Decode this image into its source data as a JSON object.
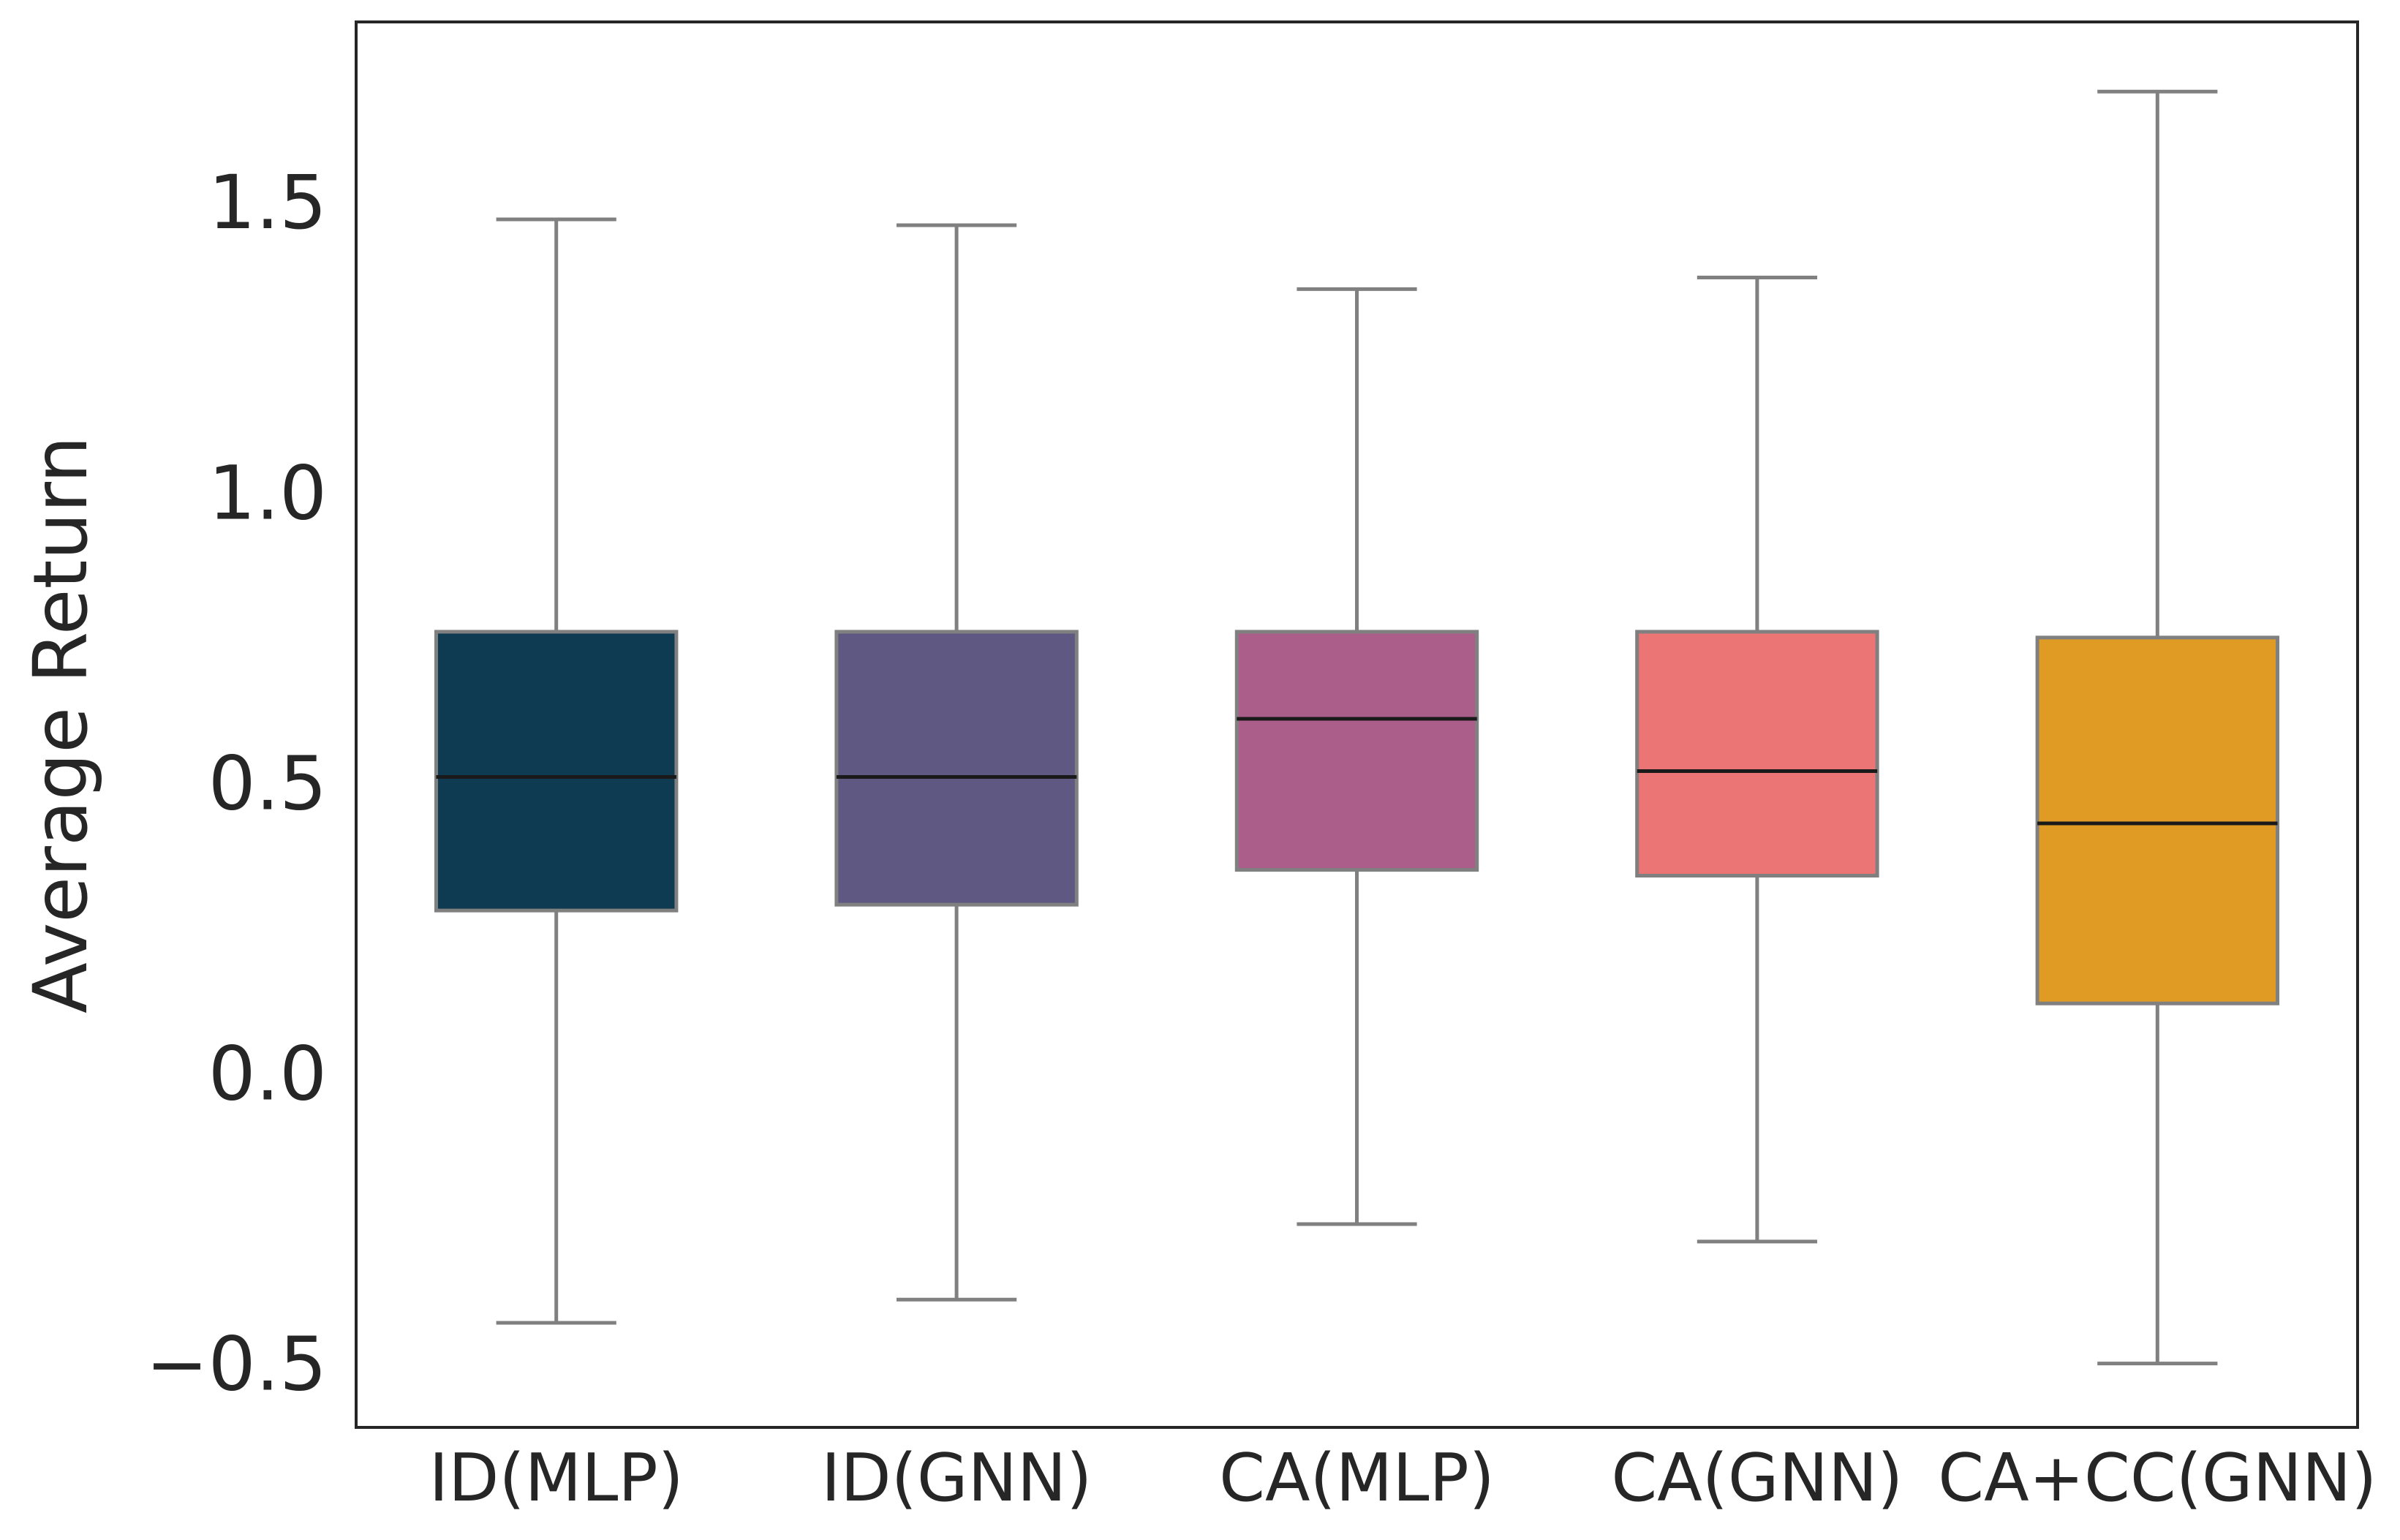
{
  "chart_data": {
    "type": "box",
    "title": "",
    "xlabel": "",
    "ylabel": "Average Return",
    "ylim": [
      -0.61,
      1.81
    ],
    "yticks": [
      -0.5,
      0.0,
      0.5,
      1.0,
      1.5
    ],
    "ytick_labels": [
      "−0.5",
      "0.0",
      "0.5",
      "1.0",
      "1.5"
    ],
    "grid": false,
    "categories": [
      "ID(MLP)",
      "ID(GNN)",
      "CA(MLP)",
      "CA(GNN)",
      "CA+CC(GNN)"
    ],
    "boxes": [
      {
        "category": "ID(MLP)",
        "whisker_low": -0.43,
        "q1": 0.28,
        "median": 0.51,
        "q3": 0.76,
        "whisker_high": 1.47,
        "color": "#0F3B52"
      },
      {
        "category": "ID(GNN)",
        "whisker_low": -0.39,
        "q1": 0.29,
        "median": 0.51,
        "q3": 0.76,
        "whisker_high": 1.46,
        "color": "#5E5882"
      },
      {
        "category": "CA(MLP)",
        "whisker_low": -0.26,
        "q1": 0.35,
        "median": 0.61,
        "q3": 0.76,
        "whisker_high": 1.35,
        "color": "#AC5E8A"
      },
      {
        "category": "CA(GNN)",
        "whisker_low": -0.29,
        "q1": 0.34,
        "median": 0.52,
        "q3": 0.76,
        "whisker_high": 1.37,
        "color": "#EB7474"
      },
      {
        "category": "CA+CC(GNN)",
        "whisker_low": -0.5,
        "q1": 0.12,
        "median": 0.43,
        "q3": 0.75,
        "whisker_high": 1.69,
        "color": "#E09B24"
      }
    ],
    "colors": {
      "outline": "#808080",
      "median": "#1a1a1a",
      "frame": "#262626",
      "text": "#262626"
    }
  }
}
